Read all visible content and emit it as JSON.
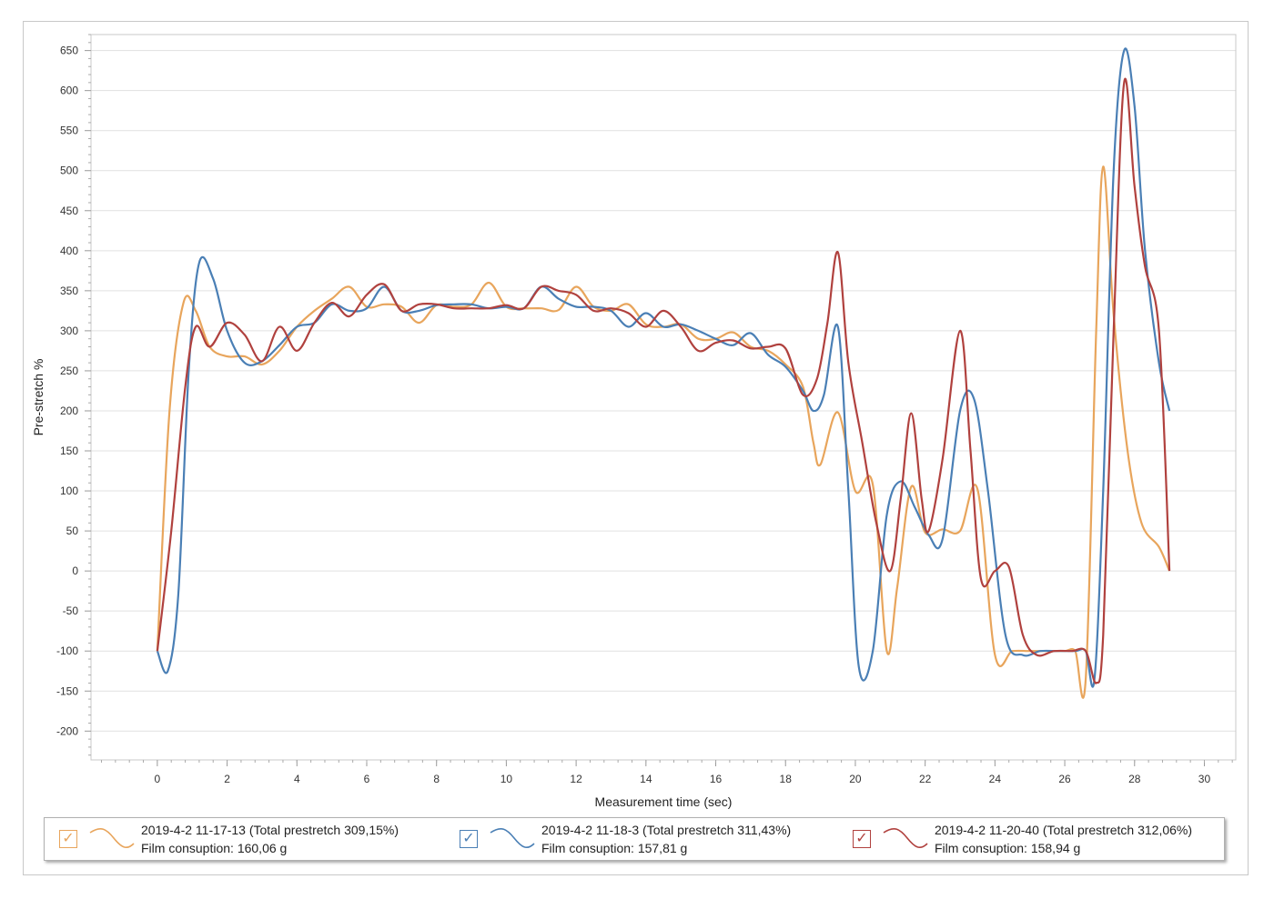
{
  "chart_data": {
    "type": "line",
    "title": "",
    "xlabel": "Measurement time (sec)",
    "ylabel": "Pre-stretch %",
    "xlim": [
      -1.9,
      30.9
    ],
    "ylim": [
      -236,
      670
    ],
    "x_ticks": [
      0,
      2,
      4,
      6,
      8,
      10,
      12,
      14,
      16,
      18,
      20,
      22,
      24,
      26,
      28,
      30
    ],
    "y_ticks": [
      650,
      600,
      550,
      500,
      450,
      400,
      350,
      300,
      250,
      200,
      150,
      100,
      50,
      0,
      -50,
      -100,
      -150,
      -200
    ],
    "grid": true,
    "legend_position": "bottom",
    "series": [
      {
        "name": "2019-4-2 11-17-13 (Total prestretch 309,15%)",
        "subtitle": "Film consuption: 160,06 g",
        "color": "#E8A55C",
        "checked": true,
        "points": [
          [
            0,
            -100
          ],
          [
            0.35,
            200
          ],
          [
            0.75,
            335
          ],
          [
            1.1,
            325
          ],
          [
            1.5,
            280
          ],
          [
            2,
            268
          ],
          [
            2.5,
            268
          ],
          [
            3,
            258
          ],
          [
            3.5,
            275
          ],
          [
            4,
            305
          ],
          [
            4.5,
            325
          ],
          [
            5,
            340
          ],
          [
            5.5,
            355
          ],
          [
            6,
            330
          ],
          [
            6.5,
            333
          ],
          [
            7,
            330
          ],
          [
            7.5,
            310
          ],
          [
            8,
            332
          ],
          [
            8.5,
            330
          ],
          [
            9,
            333
          ],
          [
            9.5,
            360
          ],
          [
            10,
            330
          ],
          [
            10.5,
            328
          ],
          [
            11,
            328
          ],
          [
            11.5,
            326
          ],
          [
            12,
            355
          ],
          [
            12.5,
            330
          ],
          [
            13,
            325
          ],
          [
            13.5,
            333
          ],
          [
            14,
            308
          ],
          [
            14.5,
            305
          ],
          [
            15,
            308
          ],
          [
            15.5,
            290
          ],
          [
            16,
            290
          ],
          [
            16.5,
            298
          ],
          [
            17,
            280
          ],
          [
            17.5,
            275
          ],
          [
            18,
            258
          ],
          [
            18.5,
            230
          ],
          [
            18.8,
            160
          ],
          [
            19,
            133
          ],
          [
            19.5,
            198
          ],
          [
            20,
            100
          ],
          [
            20.5,
            108
          ],
          [
            20.9,
            -100
          ],
          [
            21.2,
            -20
          ],
          [
            21.6,
            105
          ],
          [
            22,
            48
          ],
          [
            22.5,
            52
          ],
          [
            23,
            50
          ],
          [
            23.5,
            102
          ],
          [
            24,
            -105
          ],
          [
            24.5,
            -100
          ],
          [
            25,
            -100
          ],
          [
            25.5,
            -100
          ],
          [
            26,
            -100
          ],
          [
            26.3,
            -100
          ],
          [
            26.6,
            -135
          ],
          [
            26.9,
            300
          ],
          [
            27.1,
            505
          ],
          [
            27.4,
            320
          ],
          [
            27.8,
            150
          ],
          [
            28.2,
            60
          ],
          [
            28.7,
            30
          ],
          [
            29,
            0
          ]
        ]
      },
      {
        "name": "2019-4-2 11-18-3 (Total prestretch 311,43%)",
        "subtitle": "Film consuption: 157,81 g",
        "color": "#4A7FB5",
        "checked": true,
        "points": [
          [
            0,
            -100
          ],
          [
            0.3,
            -125
          ],
          [
            0.6,
            -30
          ],
          [
            0.9,
            250
          ],
          [
            1.2,
            385
          ],
          [
            1.6,
            365
          ],
          [
            2,
            300
          ],
          [
            2.5,
            260
          ],
          [
            3,
            262
          ],
          [
            3.5,
            282
          ],
          [
            4,
            305
          ],
          [
            4.5,
            310
          ],
          [
            5,
            333
          ],
          [
            5.5,
            325
          ],
          [
            6,
            328
          ],
          [
            6.5,
            355
          ],
          [
            7,
            325
          ],
          [
            7.5,
            325
          ],
          [
            8,
            332
          ],
          [
            8.5,
            333
          ],
          [
            9,
            333
          ],
          [
            9.5,
            328
          ],
          [
            10,
            330
          ],
          [
            10.5,
            328
          ],
          [
            11,
            355
          ],
          [
            11.5,
            340
          ],
          [
            12,
            330
          ],
          [
            12.5,
            330
          ],
          [
            13,
            325
          ],
          [
            13.5,
            305
          ],
          [
            14,
            322
          ],
          [
            14.5,
            305
          ],
          [
            15,
            308
          ],
          [
            15.5,
            300
          ],
          [
            16,
            290
          ],
          [
            16.5,
            282
          ],
          [
            17,
            297
          ],
          [
            17.5,
            270
          ],
          [
            18,
            255
          ],
          [
            18.5,
            225
          ],
          [
            18.8,
            200
          ],
          [
            19.1,
            220
          ],
          [
            19.5,
            305
          ],
          [
            19.8,
            100
          ],
          [
            20.1,
            -120
          ],
          [
            20.5,
            -100
          ],
          [
            20.9,
            70
          ],
          [
            21.3,
            112
          ],
          [
            21.7,
            80
          ],
          [
            22.1,
            45
          ],
          [
            22.5,
            40
          ],
          [
            23,
            200
          ],
          [
            23.4,
            215
          ],
          [
            23.8,
            100
          ],
          [
            24.3,
            -80
          ],
          [
            24.8,
            -105
          ],
          [
            25.3,
            -100
          ],
          [
            25.8,
            -100
          ],
          [
            26.3,
            -100
          ],
          [
            26.6,
            -100
          ],
          [
            26.85,
            -135
          ],
          [
            27.1,
            100
          ],
          [
            27.4,
            500
          ],
          [
            27.7,
            650
          ],
          [
            28,
            580
          ],
          [
            28.3,
            400
          ],
          [
            28.7,
            260
          ],
          [
            29,
            200
          ]
        ]
      },
      {
        "name": "2019-4-2 11-20-40 (Total prestretch 312,06%)",
        "subtitle": "Film consuption: 158,94 g",
        "color": "#B0413E",
        "checked": true,
        "points": [
          [
            0,
            -100
          ],
          [
            0.4,
            50
          ],
          [
            0.8,
            230
          ],
          [
            1.1,
            305
          ],
          [
            1.5,
            280
          ],
          [
            2,
            310
          ],
          [
            2.5,
            295
          ],
          [
            3,
            262
          ],
          [
            3.5,
            305
          ],
          [
            4,
            275
          ],
          [
            4.5,
            310
          ],
          [
            5,
            335
          ],
          [
            5.5,
            318
          ],
          [
            6,
            345
          ],
          [
            6.5,
            358
          ],
          [
            7,
            325
          ],
          [
            7.5,
            333
          ],
          [
            8,
            333
          ],
          [
            8.5,
            328
          ],
          [
            9,
            328
          ],
          [
            9.5,
            328
          ],
          [
            10,
            332
          ],
          [
            10.5,
            328
          ],
          [
            11,
            355
          ],
          [
            11.5,
            350
          ],
          [
            12,
            345
          ],
          [
            12.5,
            325
          ],
          [
            13,
            328
          ],
          [
            13.5,
            322
          ],
          [
            14,
            305
          ],
          [
            14.5,
            325
          ],
          [
            15,
            305
          ],
          [
            15.5,
            275
          ],
          [
            16,
            285
          ],
          [
            16.5,
            288
          ],
          [
            17,
            278
          ],
          [
            17.5,
            280
          ],
          [
            18,
            278
          ],
          [
            18.5,
            220
          ],
          [
            18.9,
            240
          ],
          [
            19.2,
            310
          ],
          [
            19.5,
            398
          ],
          [
            19.8,
            260
          ],
          [
            20.2,
            160
          ],
          [
            20.6,
            60
          ],
          [
            21,
            0
          ],
          [
            21.3,
            90
          ],
          [
            21.6,
            197
          ],
          [
            21.9,
            90
          ],
          [
            22.1,
            50
          ],
          [
            22.5,
            140
          ],
          [
            23,
            300
          ],
          [
            23.3,
            150
          ],
          [
            23.6,
            -10
          ],
          [
            24,
            0
          ],
          [
            24.4,
            5
          ],
          [
            24.8,
            -80
          ],
          [
            25.2,
            -105
          ],
          [
            25.7,
            -100
          ],
          [
            26.2,
            -100
          ],
          [
            26.6,
            -100
          ],
          [
            26.9,
            -140
          ],
          [
            27.1,
            -80
          ],
          [
            27.4,
            300
          ],
          [
            27.7,
            610
          ],
          [
            28,
            480
          ],
          [
            28.3,
            380
          ],
          [
            28.7,
            300
          ],
          [
            29,
            0
          ]
        ]
      }
    ]
  }
}
